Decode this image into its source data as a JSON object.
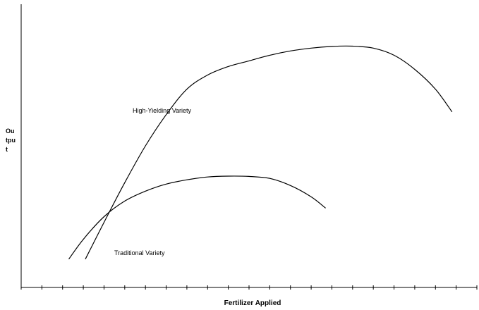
{
  "chart_data": {
    "type": "line",
    "title": "",
    "xlabel": "Fertilizer Applied",
    "ylabel": "Output",
    "ylabel_lines": [
      "Ou",
      "tpu",
      "t"
    ],
    "xlim": [
      0,
      22
    ],
    "ylim": [
      0,
      100
    ],
    "x_tick_count": 22,
    "x_tick_labels": [],
    "y_tick_labels": [],
    "grid": false,
    "legend": "none",
    "series": [
      {
        "name": "High-Yielding Variety",
        "color": "#000000",
        "points": [
          [
            3.1,
            10
          ],
          [
            4.0,
            23
          ],
          [
            5.0,
            37
          ],
          [
            6.0,
            50
          ],
          [
            7.0,
            61
          ],
          [
            8.0,
            70
          ],
          [
            9.0,
            75
          ],
          [
            10.0,
            78
          ],
          [
            11.0,
            80
          ],
          [
            12.0,
            82
          ],
          [
            13.0,
            83.5
          ],
          [
            14.0,
            84.5
          ],
          [
            15.0,
            85.1
          ],
          [
            16.0,
            85.2
          ],
          [
            17.0,
            84.5
          ],
          [
            18.0,
            82
          ],
          [
            19.0,
            77
          ],
          [
            20.0,
            70
          ],
          [
            20.8,
            62
          ]
        ]
      },
      {
        "name": "Traditional Variety",
        "color": "#000000",
        "points": [
          [
            2.3,
            10
          ],
          [
            3.0,
            17
          ],
          [
            4.0,
            25
          ],
          [
            5.0,
            30.5
          ],
          [
            6.0,
            34
          ],
          [
            7.0,
            36.5
          ],
          [
            8.0,
            38
          ],
          [
            9.0,
            39
          ],
          [
            10.0,
            39.3
          ],
          [
            11.0,
            39.2
          ],
          [
            12.0,
            38.5
          ],
          [
            13.0,
            36
          ],
          [
            14.0,
            32
          ],
          [
            14.7,
            28
          ]
        ]
      }
    ]
  }
}
